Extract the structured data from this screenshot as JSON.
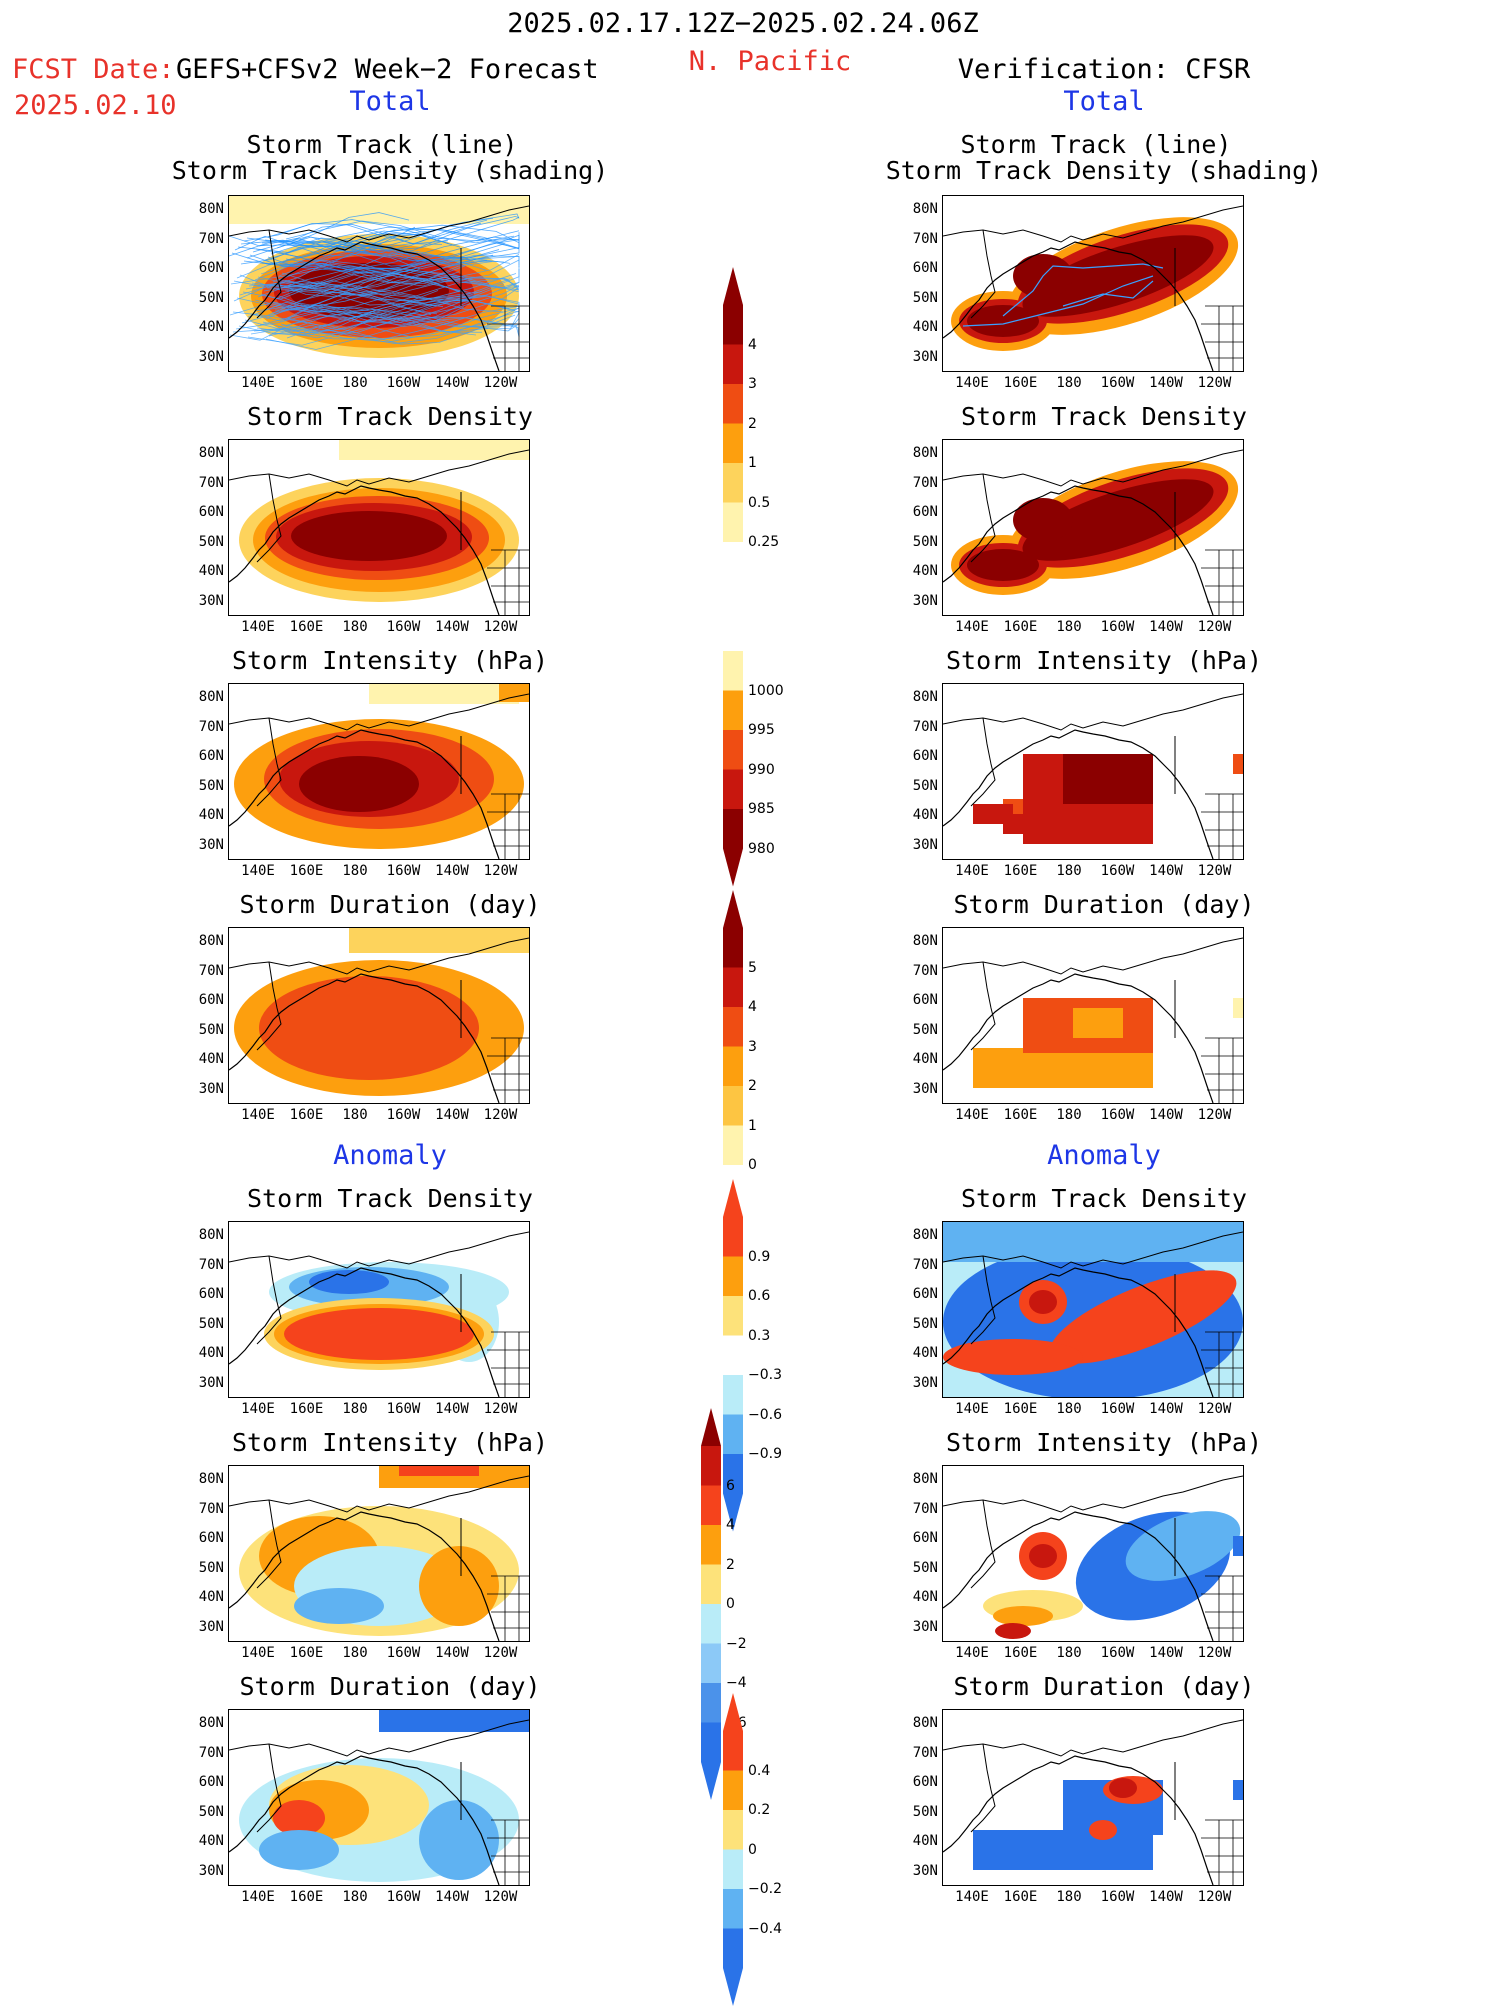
{
  "header": {
    "date_range": "2025.02.17.12Z−2025.02.24.06Z",
    "fcst_date_label": "FCST Date:",
    "fcst_model": "GEFS+CFSv2 Week−2 Forecast",
    "fcst_date": "2025.02.10",
    "region": "N. Pacific",
    "verification": "Verification: CFSR"
  },
  "sections": {
    "total": "Total",
    "anomaly": "Anomaly"
  },
  "axes": {
    "lat_ticks": [
      "80N",
      "70N",
      "60N",
      "50N",
      "40N",
      "30N"
    ],
    "lon_ticks": [
      "140E",
      "160E",
      "180",
      "160W",
      "140W",
      "120W"
    ]
  },
  "panels": {
    "track_line": {
      "title1": "Storm Track (line)",
      "title2": "Storm Track Density (shading)"
    },
    "density": {
      "title": "Storm Track Density"
    },
    "intensity": {
      "title": "Storm Intensity (hPa)"
    },
    "duration": {
      "title": "Storm Duration (day)"
    }
  },
  "colorbars": {
    "density_total": {
      "labels": [
        "4",
        "3",
        "2",
        "1",
        "0.5",
        "0.25"
      ],
      "colors": [
        "#8b0000",
        "#c8170e",
        "#ef4d13",
        "#fd9f0e",
        "#fdd35c",
        "#fff3ae"
      ]
    },
    "intensity_total": {
      "labels": [
        "1000",
        "995",
        "990",
        "985",
        "980"
      ],
      "colors": [
        "#fff3ae",
        "#fd9f0e",
        "#ef4d13",
        "#c8170e",
        "#8b0000"
      ]
    },
    "duration_total": {
      "labels": [
        "5",
        "4",
        "3",
        "2",
        "1",
        "0"
      ],
      "colors": [
        "#8b0000",
        "#c8170e",
        "#ef4d13",
        "#fd9f0e",
        "#fdc542",
        "#fff3ae"
      ]
    },
    "density_anom": {
      "labels": [
        "0.9",
        "0.6",
        "0.3",
        "−0.3",
        "−0.6",
        "−0.9"
      ],
      "colors": [
        "#f5431c",
        "#fd9f0e",
        "#fde27a",
        "#ffffff",
        "#b9ecf8",
        "#5fb2f2",
        "#2a73e8"
      ]
    },
    "intensity_anom": {
      "labels": [
        "6",
        "4",
        "2",
        "0",
        "−2",
        "−4",
        "−6"
      ],
      "colors": [
        "#c8170e",
        "#f5431c",
        "#fd9f0e",
        "#fde27a",
        "#b9ecf8",
        "#8cc9f7",
        "#4b92ea",
        "#2a73e8"
      ]
    },
    "duration_anom": {
      "labels": [
        "0.4",
        "0.2",
        "0",
        "−0.2",
        "−0.4"
      ],
      "colors": [
        "#f5431c",
        "#fd9f0e",
        "#fde27a",
        "#b9ecf8",
        "#5fb2f2",
        "#2a73e8"
      ]
    }
  }
}
